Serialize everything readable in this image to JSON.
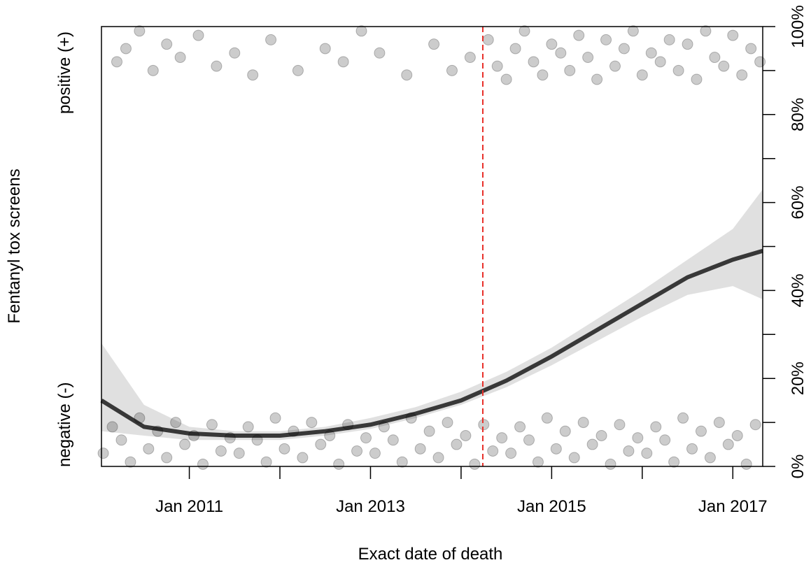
{
  "chart_data": {
    "type": "scatter",
    "y_title": "Fentanyl tox screens",
    "x_title": "Exact date of death",
    "ycategories": [
      "negative (-)",
      "positive (+)"
    ],
    "xlim": [
      2010.03,
      2017.33
    ],
    "xticks": [
      {
        "value": 2011,
        "label": "Jan 2011"
      },
      {
        "value": 2013,
        "label": "Jan 2013"
      },
      {
        "value": 2015,
        "label": "Jan 2015"
      },
      {
        "value": 2017,
        "label": "Jan 2017"
      }
    ],
    "xminor_ticks": [
      2012,
      2014,
      2016
    ],
    "y2lim": [
      0,
      100
    ],
    "y2ticks": [
      {
        "value": 0,
        "label": "0%"
      },
      {
        "value": 20,
        "label": "20%"
      },
      {
        "value": 40,
        "label": "40%"
      },
      {
        "value": 60,
        "label": "60%"
      },
      {
        "value": 80,
        "label": "80%"
      },
      {
        "value": 100,
        "label": "100%"
      }
    ],
    "y2minor_ticks": [
      10,
      30,
      50,
      70,
      90
    ],
    "vline": {
      "x": 2014.24,
      "color": "#e8302a"
    },
    "series": [
      {
        "color": "#000000",
        "axis": "y2",
        "x": [
          2010.05,
          2010.15,
          2010.25,
          2010.35,
          2010.45,
          2010.55,
          2010.65,
          2010.75,
          2010.85,
          2010.95,
          2011.05,
          2011.15,
          2011.25,
          2011.35,
          2011.45,
          2011.55,
          2011.65,
          2011.75,
          2011.85,
          2011.95,
          2012.05,
          2012.15,
          2012.25,
          2012.35,
          2012.45,
          2012.55,
          2012.65,
          2012.75,
          2012.85,
          2012.95,
          2013.05,
          2013.15,
          2013.25,
          2013.35,
          2013.45,
          2013.55,
          2013.65,
          2013.75,
          2013.85,
          2013.95,
          2014.05,
          2014.15,
          2014.25,
          2014.35,
          2014.45,
          2014.55,
          2014.65,
          2014.75,
          2014.85,
          2014.95,
          2015.05,
          2015.15,
          2015.25,
          2015.35,
          2015.45,
          2015.55,
          2015.65,
          2015.75,
          2015.85,
          2015.95,
          2016.05,
          2016.15,
          2016.25,
          2016.35,
          2016.45,
          2016.55,
          2016.65,
          2016.75,
          2016.85,
          2016.95,
          2017.05,
          2017.15,
          2017.25,
          2010.2,
          2010.3,
          2010.45,
          2010.6,
          2010.75,
          2010.9,
          2011.1,
          2011.3,
          2011.5,
          2011.7,
          2011.9,
          2012.2,
          2012.5,
          2012.7,
          2012.9,
          2013.1,
          2013.4,
          2013.7,
          2013.9,
          2014.1,
          2014.3,
          2014.4,
          2014.5,
          2014.6,
          2014.7,
          2014.8,
          2014.9,
          2015.0,
          2015.1,
          2015.2,
          2015.3,
          2015.4,
          2015.5,
          2015.6,
          2015.7,
          2015.8,
          2015.9,
          2016.0,
          2016.1,
          2016.2,
          2016.3,
          2016.4,
          2016.5,
          2016.6,
          2016.7,
          2016.8,
          2016.9,
          2017.0,
          2017.1,
          2017.2,
          2017.3
        ],
        "values": [
          3,
          9,
          6,
          1,
          11,
          4,
          8,
          2,
          10,
          5,
          7,
          0.5,
          9.5,
          3.5,
          6.5,
          3,
          9,
          6,
          1,
          11,
          4,
          8,
          2,
          10,
          5,
          7,
          0.5,
          9.5,
          3.5,
          6.5,
          3,
          9,
          6,
          1,
          11,
          4,
          8,
          2,
          10,
          5,
          7,
          0.5,
          9.5,
          3.5,
          6.5,
          3,
          9,
          6,
          1,
          11,
          4,
          8,
          2,
          10,
          5,
          7,
          0.5,
          9.5,
          3.5,
          6.5,
          3,
          9,
          6,
          1,
          11,
          4,
          8,
          2,
          10,
          5,
          7,
          0.5,
          9.5,
          92,
          95,
          99,
          90,
          96,
          93,
          98,
          91,
          94,
          89,
          97,
          90,
          95,
          92,
          99,
          94,
          89,
          96,
          90,
          93,
          97,
          91,
          88,
          95,
          99,
          92,
          89,
          96,
          94,
          90,
          98,
          93,
          88,
          97,
          91,
          95,
          99,
          89,
          94,
          92,
          97,
          90,
          96,
          88,
          99,
          93,
          91,
          98,
          89,
          95,
          92
        ]
      }
    ],
    "fit": {
      "color": "#000000",
      "x": [
        2010.03,
        2010.5,
        2011,
        2011.5,
        2012,
        2012.5,
        2013,
        2013.5,
        2014,
        2014.5,
        2015,
        2015.5,
        2016,
        2016.5,
        2017,
        2017.33
      ],
      "values": [
        15,
        9,
        7.5,
        7,
        7,
        8,
        9.5,
        12,
        15,
        19.5,
        25,
        31,
        37,
        43,
        47,
        49
      ]
    },
    "band": {
      "x": [
        2010.03,
        2010.5,
        2011,
        2011.5,
        2012,
        2012.5,
        2013,
        2013.5,
        2014,
        2014.5,
        2015,
        2015.5,
        2016,
        2016.5,
        2017,
        2017.33
      ],
      "lower": [
        8,
        7,
        6,
        6,
        6,
        7,
        8.5,
        11,
        14,
        18,
        23,
        28.5,
        34,
        39,
        41,
        38
      ],
      "upper": [
        28,
        14,
        9,
        8,
        8,
        9,
        11,
        13.5,
        17,
        21.5,
        27,
        33.5,
        40,
        47,
        54,
        63
      ]
    }
  }
}
